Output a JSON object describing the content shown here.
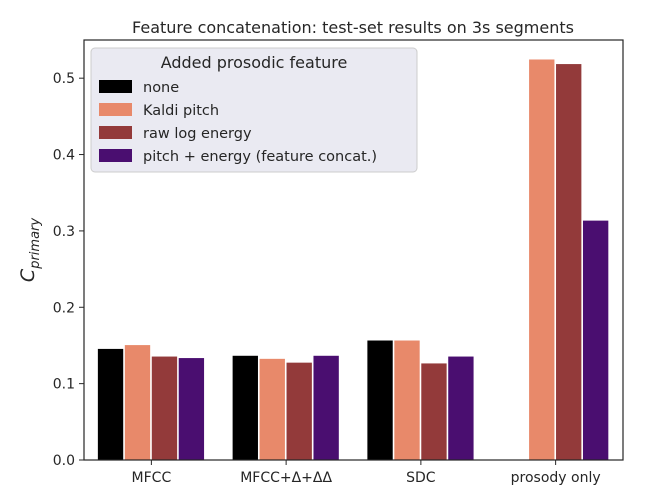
{
  "chart_data": {
    "type": "bar",
    "title": "Feature concatenation: test-set results on 3s segments",
    "xlabel": "",
    "ylabel": "C",
    "ylabel_subscript": "primary",
    "categories": [
      "MFCC",
      "MFCC+Δ+ΔΔ",
      "SDC",
      "prosody only"
    ],
    "ylim": [
      0,
      0.55
    ],
    "yticks": [
      "0.0",
      "0.1",
      "0.2",
      "0.3",
      "0.4",
      "0.5"
    ],
    "grid": false,
    "legend": {
      "title": "Added prosodic feature",
      "placement": "top-left"
    },
    "series": [
      {
        "name": "none",
        "color": "#000000",
        "values": [
          0.146,
          0.137,
          0.157,
          null
        ]
      },
      {
        "name": "Kaldi pitch",
        "color": "#e8896a",
        "values": [
          0.151,
          0.133,
          0.157,
          0.525
        ]
      },
      {
        "name": "raw log energy",
        "color": "#933a3a",
        "values": [
          0.136,
          0.128,
          0.127,
          0.519
        ]
      },
      {
        "name": "pitch + energy (feature concat.)",
        "color": "#4a0e70",
        "values": [
          0.134,
          0.137,
          0.136,
          0.314
        ]
      }
    ]
  }
}
